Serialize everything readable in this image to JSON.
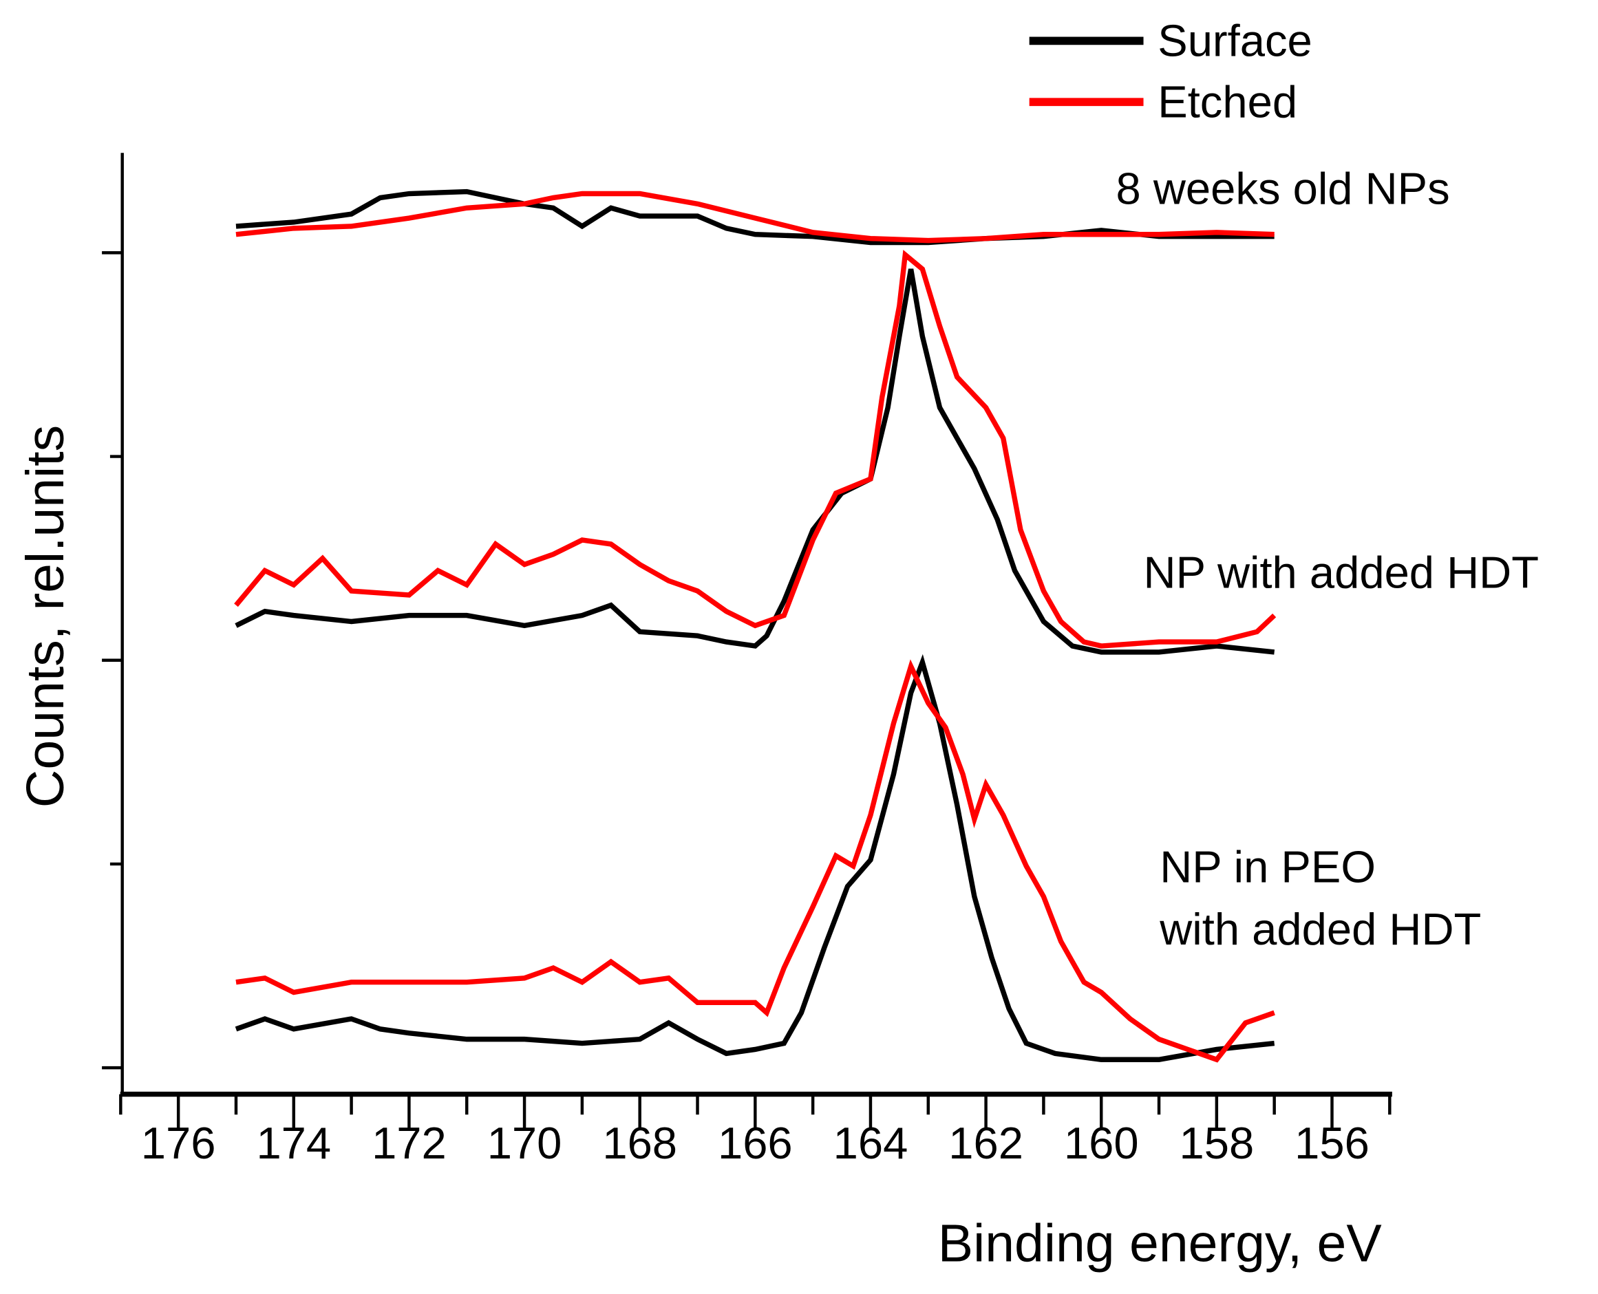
{
  "chart_data": {
    "type": "line",
    "title": "",
    "xlabel": "Binding energy, eV",
    "ylabel": "Counts, rel.units",
    "xlim": [
      177,
      155
    ],
    "ylim": [
      -12,
      449
    ],
    "x_reversed": true,
    "x_ticks": [
      176,
      174,
      172,
      170,
      168,
      166,
      164,
      162,
      160,
      158,
      156
    ],
    "y_ticks": [
      0,
      100,
      200,
      300,
      400
    ],
    "y_tick_labels_shown": false,
    "grid": false,
    "legend": {
      "position": "top-right",
      "entries": [
        {
          "label": "Surface",
          "color": "#000000"
        },
        {
          "label": "Etched",
          "color": "#ff0000"
        }
      ]
    },
    "annotations": [
      "8 weeks old NPs",
      "NP with added HDT",
      "NP in PEO",
      "with added HDT"
    ],
    "series": [
      {
        "name": "Surface",
        "group": "8 weeks old NPs",
        "color": "#000000",
        "points": [
          [
            175,
            413
          ],
          [
            174,
            415
          ],
          [
            173,
            419
          ],
          [
            172.5,
            427
          ],
          [
            172,
            429
          ],
          [
            171,
            430
          ],
          [
            170.5,
            427
          ],
          [
            170,
            424
          ],
          [
            169.5,
            422
          ],
          [
            169,
            413
          ],
          [
            168.5,
            422
          ],
          [
            168,
            418
          ],
          [
            167,
            418
          ],
          [
            166.5,
            412
          ],
          [
            166,
            409
          ],
          [
            165,
            408
          ],
          [
            164,
            405
          ],
          [
            163,
            405
          ],
          [
            162,
            407
          ],
          [
            161,
            408
          ],
          [
            160,
            411
          ],
          [
            159,
            408
          ],
          [
            158,
            408
          ],
          [
            157,
            408
          ]
        ]
      },
      {
        "name": "Etched",
        "group": "8 weeks old NPs",
        "color": "#ff0000",
        "points": [
          [
            175,
            409
          ],
          [
            174,
            412
          ],
          [
            173,
            413
          ],
          [
            172,
            417
          ],
          [
            171,
            422
          ],
          [
            170,
            424
          ],
          [
            169.5,
            427
          ],
          [
            169,
            429
          ],
          [
            168,
            429
          ],
          [
            167,
            424
          ],
          [
            166,
            417
          ],
          [
            165,
            410
          ],
          [
            164,
            407
          ],
          [
            163,
            406
          ],
          [
            162,
            407
          ],
          [
            161,
            409
          ],
          [
            160,
            409
          ],
          [
            159,
            409
          ],
          [
            158,
            410
          ],
          [
            157,
            409
          ]
        ]
      },
      {
        "name": "Surface",
        "group": "NP with added HDT",
        "color": "#000000",
        "points": [
          [
            175,
            217
          ],
          [
            174.5,
            224
          ],
          [
            174,
            222
          ],
          [
            173,
            219
          ],
          [
            172,
            222
          ],
          [
            171,
            222
          ],
          [
            170,
            217
          ],
          [
            169,
            222
          ],
          [
            168.5,
            227
          ],
          [
            168,
            214
          ],
          [
            167,
            212
          ],
          [
            166.5,
            209
          ],
          [
            166,
            207
          ],
          [
            165.8,
            212
          ],
          [
            165.5,
            229
          ],
          [
            165,
            264
          ],
          [
            164.5,
            282
          ],
          [
            164,
            289
          ],
          [
            163.7,
            324
          ],
          [
            163.5,
            359
          ],
          [
            163.3,
            392
          ],
          [
            163.1,
            359
          ],
          [
            162.8,
            324
          ],
          [
            162.5,
            309
          ],
          [
            162.2,
            294
          ],
          [
            161.8,
            269
          ],
          [
            161.5,
            244
          ],
          [
            161,
            219
          ],
          [
            160.5,
            207
          ],
          [
            160,
            204
          ],
          [
            159,
            204
          ],
          [
            158,
            207
          ],
          [
            157,
            204
          ]
        ]
      },
      {
        "name": "Etched",
        "group": "NP with added HDT",
        "color": "#ff0000",
        "points": [
          [
            175,
            227
          ],
          [
            174.5,
            244
          ],
          [
            174,
            237
          ],
          [
            173.5,
            250
          ],
          [
            173,
            234
          ],
          [
            172,
            232
          ],
          [
            171.5,
            244
          ],
          [
            171,
            237
          ],
          [
            170.5,
            257
          ],
          [
            170,
            247
          ],
          [
            169.5,
            252
          ],
          [
            169,
            259
          ],
          [
            168.5,
            257
          ],
          [
            168,
            247
          ],
          [
            167.5,
            239
          ],
          [
            167,
            234
          ],
          [
            166.5,
            224
          ],
          [
            166,
            217
          ],
          [
            165.5,
            222
          ],
          [
            165,
            259
          ],
          [
            164.6,
            282
          ],
          [
            164,
            289
          ],
          [
            163.8,
            329
          ],
          [
            163.5,
            374
          ],
          [
            163.4,
            399
          ],
          [
            163.1,
            392
          ],
          [
            162.8,
            364
          ],
          [
            162.5,
            339
          ],
          [
            162,
            324
          ],
          [
            161.7,
            309
          ],
          [
            161.4,
            264
          ],
          [
            161,
            234
          ],
          [
            160.7,
            219
          ],
          [
            160.3,
            209
          ],
          [
            160,
            207
          ],
          [
            159,
            209
          ],
          [
            158,
            209
          ],
          [
            157.3,
            214
          ],
          [
            157,
            222
          ]
        ]
      },
      {
        "name": "Surface",
        "group": "NP in PEO with added HDT",
        "color": "#000000",
        "points": [
          [
            175,
            19
          ],
          [
            174.5,
            24
          ],
          [
            174,
            19
          ],
          [
            173,
            24
          ],
          [
            172.5,
            19
          ],
          [
            172,
            17
          ],
          [
            171,
            14
          ],
          [
            170,
            14
          ],
          [
            169,
            12
          ],
          [
            168,
            14
          ],
          [
            167.5,
            22
          ],
          [
            167,
            14
          ],
          [
            166.5,
            7
          ],
          [
            166,
            9
          ],
          [
            165.5,
            12
          ],
          [
            165.2,
            27
          ],
          [
            164.8,
            59
          ],
          [
            164.4,
            89
          ],
          [
            164,
            102
          ],
          [
            163.6,
            144
          ],
          [
            163.3,
            184
          ],
          [
            163.1,
            199
          ],
          [
            162.8,
            169
          ],
          [
            162.5,
            129
          ],
          [
            162.2,
            84
          ],
          [
            161.9,
            54
          ],
          [
            161.6,
            29
          ],
          [
            161.3,
            12
          ],
          [
            160.8,
            7
          ],
          [
            160,
            4
          ],
          [
            159,
            4
          ],
          [
            158,
            9
          ],
          [
            157,
            12
          ]
        ]
      },
      {
        "name": "Etched",
        "group": "NP in PEO with added HDT",
        "color": "#ff0000",
        "points": [
          [
            175,
            42
          ],
          [
            174.5,
            44
          ],
          [
            174,
            37
          ],
          [
            173,
            42
          ],
          [
            172,
            42
          ],
          [
            171,
            42
          ],
          [
            170,
            44
          ],
          [
            169.5,
            49
          ],
          [
            169,
            42
          ],
          [
            168.5,
            52
          ],
          [
            168,
            42
          ],
          [
            167.5,
            44
          ],
          [
            167,
            32
          ],
          [
            166,
            32
          ],
          [
            165.8,
            27
          ],
          [
            165.5,
            49
          ],
          [
            165,
            79
          ],
          [
            164.6,
            104
          ],
          [
            164.3,
            99
          ],
          [
            164,
            124
          ],
          [
            163.6,
            169
          ],
          [
            163.3,
            197
          ],
          [
            163,
            179
          ],
          [
            162.7,
            167
          ],
          [
            162.4,
            144
          ],
          [
            162.2,
            122
          ],
          [
            162,
            139
          ],
          [
            161.7,
            124
          ],
          [
            161.3,
            99
          ],
          [
            161,
            84
          ],
          [
            160.7,
            62
          ],
          [
            160.3,
            42
          ],
          [
            160,
            37
          ],
          [
            159.5,
            24
          ],
          [
            159,
            14
          ],
          [
            158.5,
            9
          ],
          [
            158,
            4
          ],
          [
            157.5,
            22
          ],
          [
            157,
            27
          ]
        ]
      }
    ]
  }
}
